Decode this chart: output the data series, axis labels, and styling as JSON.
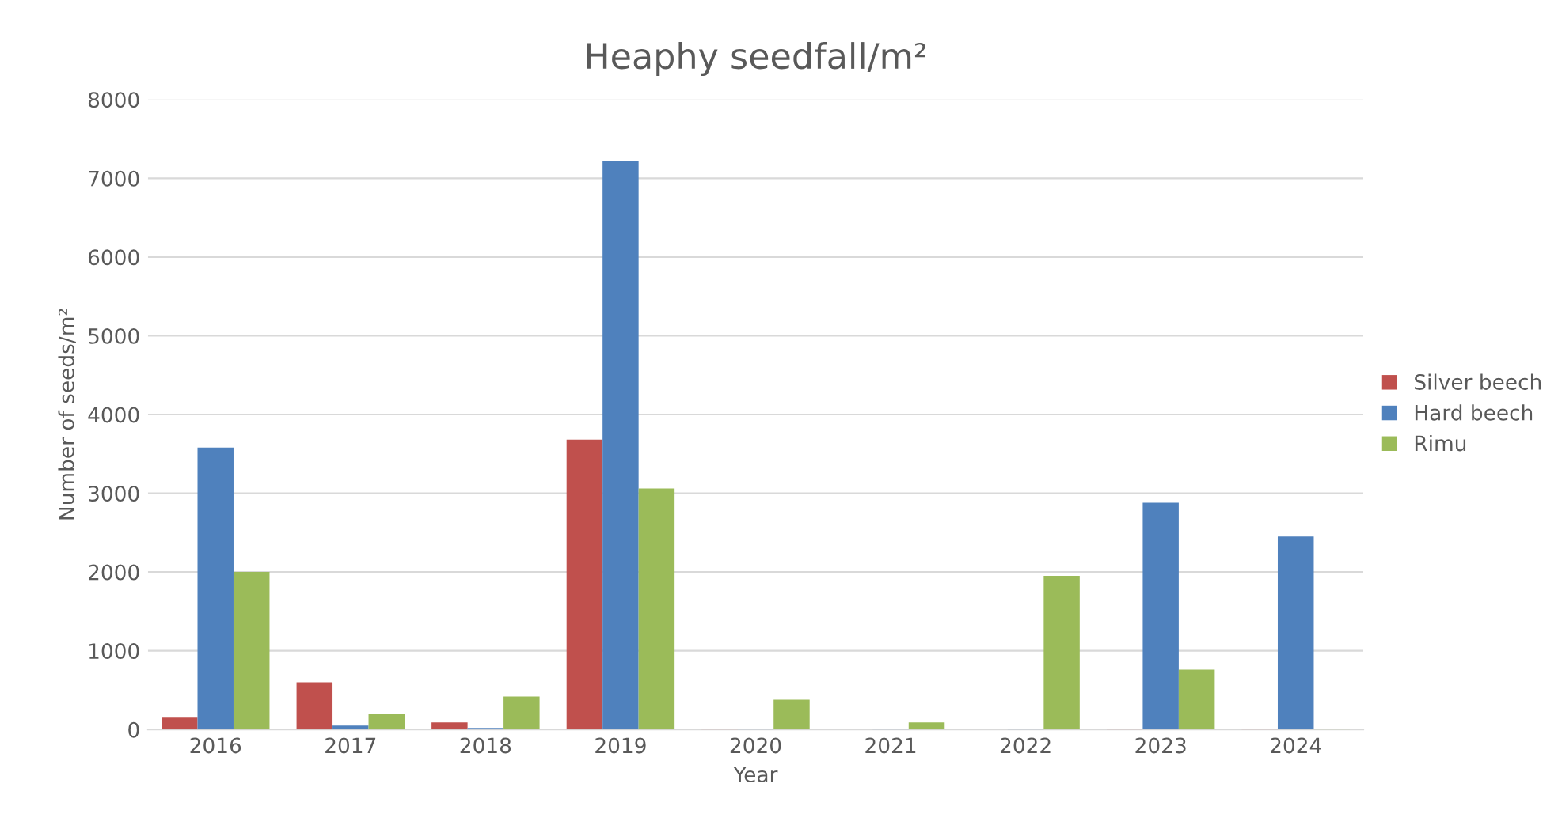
{
  "chart_data": {
    "type": "bar",
    "title": "Heaphy seedfall/m²",
    "xlabel": "Year",
    "ylabel": "Number of seeds/m²",
    "categories": [
      "2016",
      "2017",
      "2018",
      "2019",
      "2020",
      "2021",
      "2022",
      "2023",
      "2024"
    ],
    "series": [
      {
        "name": "Silver beech",
        "color": "#c0504d",
        "values": [
          150,
          600,
          90,
          3680,
          10,
          0,
          0,
          10,
          10
        ]
      },
      {
        "name": "Hard beech",
        "color": "#4f81bd",
        "values": [
          3580,
          50,
          20,
          7220,
          10,
          10,
          10,
          2880,
          2450
        ]
      },
      {
        "name": "Rimu",
        "color": "#9bbb59",
        "values": [
          2000,
          200,
          420,
          3060,
          380,
          90,
          1950,
          760,
          10
        ]
      }
    ],
    "ylim": [
      0,
      8000
    ],
    "yticks": [
      0,
      1000,
      2000,
      3000,
      4000,
      5000,
      6000,
      7000,
      8000
    ],
    "grid": "y",
    "legend": "right"
  }
}
